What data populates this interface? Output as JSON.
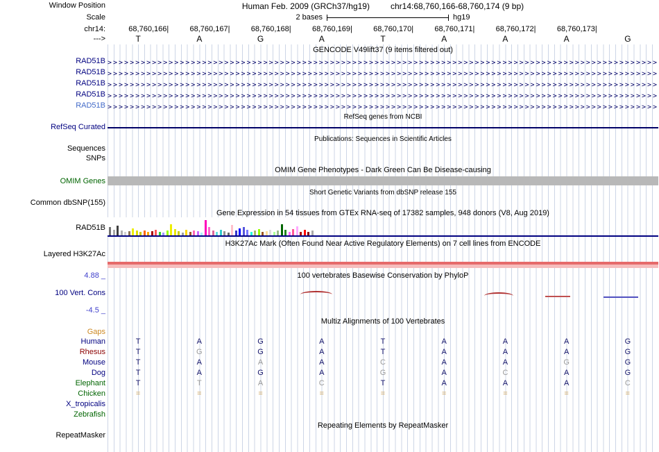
{
  "header": {
    "row_labels": {
      "window_position": "Window Position",
      "scale": "Scale",
      "chrom": "chr14:",
      "direction": "--->"
    },
    "assembly": "Human Feb. 2009 (GRCh37/hg19)",
    "position": "chr14:68,760,166-68,760,174 (9 bp)",
    "scale_value": "2 bases",
    "scale_genome": "hg19",
    "coordinates": [
      "68,760,166",
      "68,760,167",
      "68,760,168",
      "68,760,169",
      "68,760,170",
      "68,760,171",
      "68,760,172",
      "68,760,173"
    ],
    "bases": [
      "T",
      "A",
      "G",
      "A",
      "T",
      "A",
      "A",
      "A",
      "G"
    ]
  },
  "tracks": {
    "gencode": {
      "title": "GENCODE V49lift37 (9 items filtered out)",
      "items": [
        {
          "label": "RAD51B",
          "label_color": "#000080"
        },
        {
          "label": "RAD51B",
          "label_color": "#000080"
        },
        {
          "label": "RAD51B",
          "label_color": "#000080"
        },
        {
          "label": "RAD51B",
          "label_color": "#000080"
        },
        {
          "label": "RAD51B",
          "label_color": "#4169c8"
        }
      ]
    },
    "refseq": {
      "title": "RefSeq genes from NCBI",
      "label": "RefSeq Curated"
    },
    "publications": {
      "title": "Publications: Sequences in Scientific Articles",
      "label_sequences": "Sequences",
      "label_snps": "SNPs"
    },
    "omim": {
      "title": "OMIM Gene Phenotypes - Dark Green Can Be Disease-causing",
      "label": "OMIM Genes",
      "title_color": "#006400"
    },
    "dbsnp": {
      "title": "Short Genetic Variants from dbSNP release 155",
      "label": "Common dbSNP(155)"
    },
    "gtex": {
      "title": "Gene Expression in 54 tissues from GTEx RNA-seq of 17382 samples, 948 donors (V8, Aug 2019)",
      "label": "RAD51B",
      "bars": [
        [
          "#737373",
          12
        ],
        [
          "#a8a8a8",
          8
        ],
        [
          "#404040",
          14
        ],
        [
          "#b0b0b0",
          7
        ],
        [
          "#d0d0d0",
          5
        ],
        [
          "#8b7355",
          6
        ],
        [
          "#eeee00",
          10
        ],
        [
          "#e0e000",
          7
        ],
        [
          "#c8c800",
          5
        ],
        [
          "#ff6600",
          7
        ],
        [
          "#ffaa00",
          5
        ],
        [
          "#aa0000",
          6
        ],
        [
          "#ff5555",
          8
        ],
        [
          "#33cc33",
          5
        ],
        [
          "#9999ff",
          4
        ],
        [
          "#99ff00",
          7
        ],
        [
          "#eeee00",
          16
        ],
        [
          "#e8e800",
          9
        ],
        [
          "#cccc00",
          6
        ],
        [
          "#a0a0a0",
          4
        ],
        [
          "#ffd700",
          8
        ],
        [
          "#a0522d",
          5
        ],
        [
          "#ff69b4",
          7
        ],
        [
          "#cc66ff",
          6
        ],
        [
          "#aaeeff",
          4
        ],
        [
          "#ff00bb",
          22
        ],
        [
          "#ff66cc",
          12
        ],
        [
          "#dd6699",
          7
        ],
        [
          "#66dddd",
          5
        ],
        [
          "#33cccc",
          8
        ],
        [
          "#909090",
          6
        ],
        [
          "#686868",
          4
        ],
        [
          "#ffc0cb",
          15
        ],
        [
          "#3333cc",
          7
        ],
        [
          "#0000ff",
          10
        ],
        [
          "#5555dd",
          12
        ],
        [
          "#7777ff",
          8
        ],
        [
          "#22ffdd",
          5
        ],
        [
          "#aabb66",
          7
        ],
        [
          "#99ff00",
          9
        ],
        [
          "#995522",
          5
        ],
        [
          "#ffdd99",
          6
        ],
        [
          "#dddddd",
          8
        ],
        [
          "#aaff99",
          5
        ],
        [
          "#99bb88",
          7
        ],
        [
          "#006600",
          16
        ],
        [
          "#228822",
          8
        ],
        [
          "#ff66ff",
          5
        ],
        [
          "#ff5599",
          9
        ],
        [
          "#ffaaff",
          13
        ],
        [
          "#aa0000",
          5
        ],
        [
          "#ff0000",
          8
        ],
        [
          "#880000",
          5
        ],
        [
          "#aaaaaa",
          7
        ]
      ]
    },
    "h3k27ac": {
      "title": "H3K27Ac Mark (Often Found Near Active Regulatory Elements) on 7 cell lines from ENCODE",
      "label": "Layered H3K27Ac"
    },
    "conservation": {
      "title": "100 vertebrates Basewise Conservation by PhyloP",
      "label": "100 Vert. Cons",
      "scale_max": "4.88 _",
      "scale_min": "-4.5 _"
    },
    "multiz": {
      "title": "Multiz Alignments of 100 Vertebrates",
      "gaps_label": "Gaps",
      "species": [
        {
          "name": "Human",
          "color": "#000080",
          "bases": [
            "T",
            "A",
            "G",
            "A",
            "T",
            "A",
            "A",
            "A",
            "G"
          ]
        },
        {
          "name": "Rhesus",
          "color": "#8b0000",
          "bases": [
            "T",
            "G",
            "G",
            "A",
            "T",
            "A",
            "A",
            "A",
            "G"
          ]
        },
        {
          "name": "Mouse",
          "color": "#000080",
          "bases": [
            "T",
            "A",
            "A",
            "A",
            "C",
            "A",
            "A",
            "G",
            "G"
          ]
        },
        {
          "name": "Dog",
          "color": "#000080",
          "bases": [
            "T",
            "A",
            "G",
            "A",
            "G",
            "A",
            "C",
            "A",
            "G"
          ]
        },
        {
          "name": "Elephant",
          "color": "#006400",
          "bases": [
            "T",
            "T",
            "A",
            "C",
            "T",
            "A",
            "A",
            "A",
            "C"
          ]
        },
        {
          "name": "Chicken",
          "color": "#006400",
          "bases": [
            "=",
            "=",
            "=",
            "=",
            "=",
            "=",
            "=",
            "=",
            "="
          ]
        },
        {
          "name": "X_tropicalis",
          "color": "#000080",
          "bases": []
        },
        {
          "name": "Zebrafish",
          "color": "#006400",
          "bases": []
        }
      ]
    },
    "repeatmasker": {
      "title": "Repeating Elements by RepeatMasker",
      "label": "RepeatMasker"
    }
  }
}
